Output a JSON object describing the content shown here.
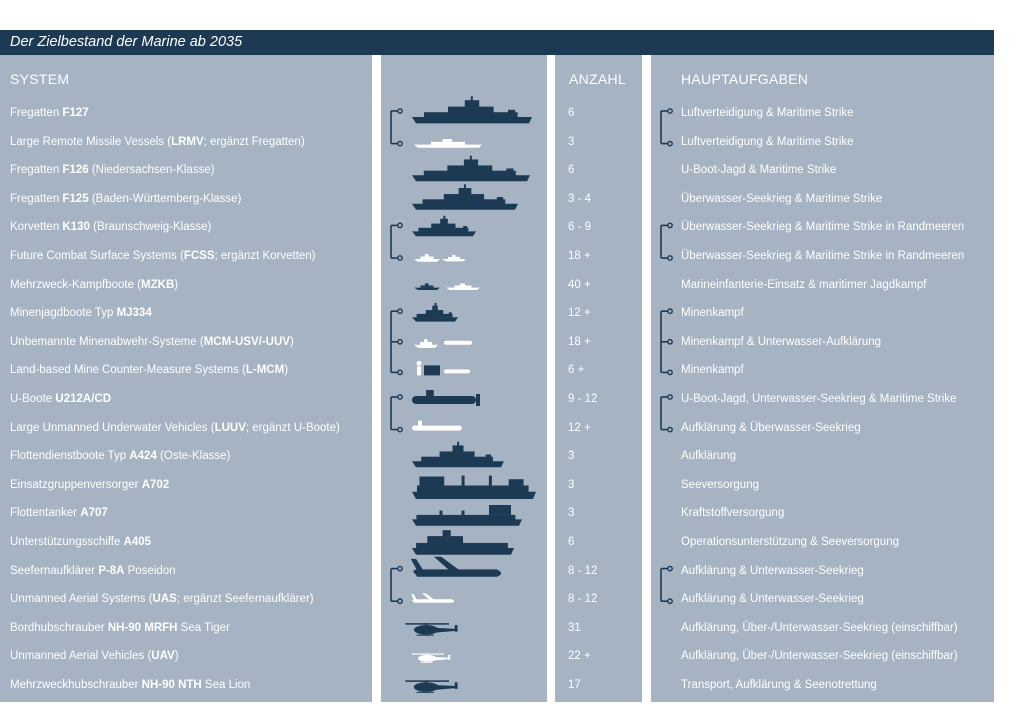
{
  "title": "Der Zielbestand der Marine ab 2035",
  "headers": {
    "system": "SYSTEM",
    "anzahl": "ANZAHL",
    "hauptaufgaben": "HAUPTAUFGABEN"
  },
  "colors": {
    "title_bar": "#1d3a55",
    "table_bg": "#a6b3c2",
    "silhouette": "#1d3a55",
    "unmanned": "#ffffff"
  },
  "rows": [
    {
      "system_pre": "Fregatten ",
      "system_bold": "F127",
      "system_post": "",
      "count": "6",
      "task": "Luftverteidigung & Maritime Strike",
      "icon": "frigate-f127-icon"
    },
    {
      "system_pre": "Large Remote Missile Vessels (",
      "system_bold": "LRMV",
      "system_post": "; ergänzt Fregatten)",
      "count": "3",
      "task": "Luftverteidigung & Maritime Strike",
      "icon": "lrmv-icon"
    },
    {
      "system_pre": "Fregatten ",
      "system_bold": "F126",
      "system_post": " (Niedersachsen-Klasse)",
      "count": "6",
      "task": "U-Boot-Jagd & Maritime Strike",
      "icon": "frigate-f126-icon"
    },
    {
      "system_pre": "Fregatten ",
      "system_bold": "F125",
      "system_post": " (Baden-Württemberg-Klasse)",
      "count": "3 - 4",
      "task": "Überwasser-Seekrieg & Maritime Strike",
      "icon": "frigate-f125-icon"
    },
    {
      "system_pre": "Korvetten ",
      "system_bold": "K130",
      "system_post": " (Braunschweig-Klasse)",
      "count": "6 - 9",
      "task": "Überwasser-Seekrieg & Maritime Strike in Randmeeren",
      "icon": "corvette-k130-icon"
    },
    {
      "system_pre": "Future Combat Surface Systems (",
      "system_bold": "FCSS",
      "system_post": "; ergänzt Korvetten)",
      "count": "18 +",
      "task": "Überwasser-Seekrieg & Maritime Strike in Randmeeren",
      "icon": "fcss-icon"
    },
    {
      "system_pre": "Mehrzweck-Kampfboote (",
      "system_bold": "MZKB",
      "system_post": ")",
      "count": "40 +",
      "task": "Marineinfanterie-Einsatz & maritimer Jagdkampf",
      "icon": "combat-boat-icon"
    },
    {
      "system_pre": "Minenjagdboote Typ ",
      "system_bold": "MJ334",
      "system_post": "",
      "count": "12 +",
      "task": "Minenkampf",
      "icon": "minehunter-icon"
    },
    {
      "system_pre": "Unbemannte Minenabwehr-Systeme (",
      "system_bold": "MCM-USV/-UUV",
      "system_post": ")",
      "count": "18 +",
      "task": "Minenkampf & Unterwasser-Aufklärung",
      "icon": "mcm-usv-uuv-icon"
    },
    {
      "system_pre": "Land-based Mine Counter-Measure Systems (",
      "system_bold": "L-MCM",
      "system_post": ")",
      "count": "6 +",
      "task": "Minenkampf",
      "icon": "l-mcm-icon"
    },
    {
      "system_pre": "U-Boote ",
      "system_bold": "U212A/CD",
      "system_post": "",
      "count": "9 - 12",
      "task": "U-Boot-Jagd, Unterwasser-Seekrieg & Maritime Strike",
      "icon": "submarine-icon"
    },
    {
      "system_pre": "Large Unmanned Underwater Vehicles (",
      "system_bold": "LUUV",
      "system_post": "; ergänzt U-Boote)",
      "count": "12 +",
      "task": "Aufklärung & Überwasser-Seekrieg",
      "icon": "luuv-icon"
    },
    {
      "system_pre": "Flottendienstboote Typ ",
      "system_bold": "A424",
      "system_post": " (Oste-Klasse)",
      "count": "3",
      "task": "Aufklärung",
      "icon": "fleet-service-boat-icon"
    },
    {
      "system_pre": "Einsatzgruppenversorger ",
      "system_bold": "A702",
      "system_post": "",
      "count": "3",
      "task": "Seeversorgung",
      "icon": "supply-ship-icon"
    },
    {
      "system_pre": "Flottentanker ",
      "system_bold": "A707",
      "system_post": "",
      "count": "3",
      "task": "Kraftstoffversorgung",
      "icon": "tanker-icon"
    },
    {
      "system_pre": "Unterstützungsschiffe ",
      "system_bold": "A405",
      "system_post": "",
      "count": "6",
      "task": "Operationsunterstützung & Seeversorgung",
      "icon": "support-ship-icon"
    },
    {
      "system_pre": "Seefernaufklärer ",
      "system_bold": "P-8A",
      "system_post": " Poseidon",
      "count": "8 - 12",
      "task": "Aufklärung & Unterwasser-Seekrieg",
      "icon": "p8a-aircraft-icon"
    },
    {
      "system_pre": "Unmanned Aerial Systems (",
      "system_bold": "UAS",
      "system_post": "; ergänzt Seefernaufklärer)",
      "count": "8 - 12",
      "task": "Aufklärung & Unterwasser-Seekrieg",
      "icon": "uas-drone-icon"
    },
    {
      "system_pre": "Bordhubschrauber ",
      "system_bold": "NH-90 MRFH",
      "system_post": " Sea Tiger",
      "count": "31",
      "task": "Aufklärung, Über-/Unterwasser-Seekrieg (einschiffbar)",
      "icon": "helicopter-sea-tiger-icon"
    },
    {
      "system_pre": "Unmanned Aerial Vehicles (",
      "system_bold": "UAV",
      "system_post": ")",
      "count": "22 +",
      "task": "Aufklärung, Über-/Unterwasser-Seekrieg (einschiffbar)",
      "icon": "uav-helicopter-icon"
    },
    {
      "system_pre": "Mehrzweckhubschrauber ",
      "system_bold": "NH-90 NTH",
      "system_post": " Sea Lion",
      "count": "17",
      "task": "Transport, Aufklärung & Seenotrettung",
      "icon": "helicopter-sea-lion-icon"
    }
  ],
  "pairs": [
    [
      0,
      1
    ],
    [
      4,
      5
    ],
    [
      7,
      8,
      9
    ],
    [
      10,
      11
    ],
    [
      16,
      17
    ]
  ]
}
